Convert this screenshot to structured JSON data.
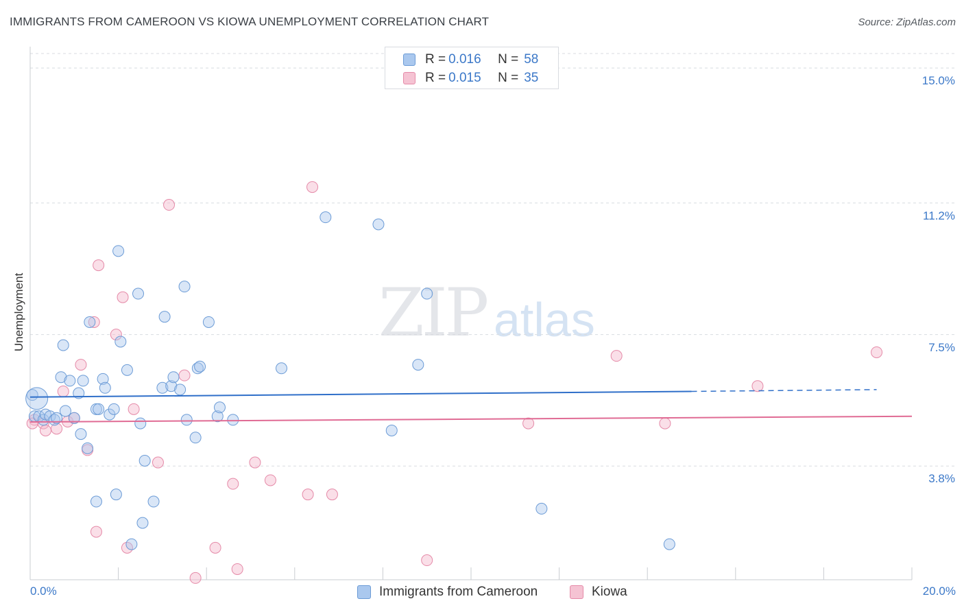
{
  "title": "IMMIGRANTS FROM CAMEROON VS KIOWA UNEMPLOYMENT CORRELATION CHART",
  "source": "Source: ZipAtlas.com",
  "watermark": {
    "zip": "ZIP",
    "atlas": "atlas"
  },
  "legend": {
    "rows": [
      {
        "r_label": "R =",
        "r_value": "0.016",
        "n_label": "N =",
        "n_value": "58"
      },
      {
        "r_label": "R =",
        "r_value": "0.015",
        "n_label": "N =",
        "n_value": "35"
      }
    ]
  },
  "bottom_legend": [
    "Immigrants from Cameroon",
    "Kiowa"
  ],
  "colors": {
    "series1_fill": "#aac8ee",
    "series1_stroke": "#6b9bd6",
    "series1_line": "#2f6fc9",
    "series2_fill": "#f5b8cc",
    "series2_stroke": "#e58aa8",
    "series2_line": "#e06b94",
    "grid": "#d8dbe0",
    "tick_text": "#3b78c8"
  },
  "chart_data": {
    "type": "scatter",
    "title": "IMMIGRANTS FROM CAMEROON VS KIOWA UNEMPLOYMENT CORRELATION CHART",
    "xlabel": "",
    "ylabel": "Unemployment",
    "xlim": [
      0,
      20
    ],
    "ylim": [
      0.6,
      15.6
    ],
    "x_tick_labels": [
      "0.0%",
      "20.0%"
    ],
    "y_ticks": [
      3.8,
      7.5,
      11.2,
      15.0
    ],
    "y_tick_labels": [
      "3.8%",
      "7.5%",
      "11.2%",
      "15.0%"
    ],
    "grid": true,
    "legend_position": "top-center",
    "series": [
      {
        "name": "Immigrants from Cameroon",
        "R": 0.016,
        "N": 58,
        "trend": {
          "x": [
            0,
            15.0
          ],
          "y": [
            5.74,
            5.9
          ],
          "dashed_to_x": 19.2,
          "dashed_y": 5.95
        },
        "points": [
          [
            0.05,
            5.8
          ],
          [
            0.1,
            5.2
          ],
          [
            0.2,
            5.2
          ],
          [
            0.3,
            5.1
          ],
          [
            0.35,
            5.25
          ],
          [
            0.45,
            5.2
          ],
          [
            0.55,
            5.1
          ],
          [
            0.6,
            5.15
          ],
          [
            0.7,
            6.3
          ],
          [
            0.75,
            7.2
          ],
          [
            0.8,
            5.35
          ],
          [
            0.9,
            6.2
          ],
          [
            1.0,
            5.15
          ],
          [
            1.1,
            5.85
          ],
          [
            1.15,
            4.7
          ],
          [
            1.2,
            6.2
          ],
          [
            1.3,
            4.3
          ],
          [
            1.35,
            7.85
          ],
          [
            1.5,
            5.4
          ],
          [
            1.5,
            2.8
          ],
          [
            1.55,
            5.4
          ],
          [
            1.65,
            6.25
          ],
          [
            1.7,
            6.0
          ],
          [
            1.8,
            5.25
          ],
          [
            1.9,
            5.4
          ],
          [
            1.95,
            3.0
          ],
          [
            2.0,
            9.85
          ],
          [
            2.05,
            7.3
          ],
          [
            2.2,
            6.5
          ],
          [
            2.3,
            1.6
          ],
          [
            2.45,
            8.65
          ],
          [
            2.5,
            5.0
          ],
          [
            2.55,
            2.2
          ],
          [
            2.6,
            3.95
          ],
          [
            2.8,
            2.8
          ],
          [
            3.0,
            6.0
          ],
          [
            3.05,
            8.0
          ],
          [
            3.2,
            6.05
          ],
          [
            3.25,
            6.3
          ],
          [
            3.4,
            5.95
          ],
          [
            3.5,
            8.85
          ],
          [
            3.55,
            5.1
          ],
          [
            3.75,
            4.6
          ],
          [
            3.8,
            6.55
          ],
          [
            3.85,
            6.6
          ],
          [
            4.05,
            7.85
          ],
          [
            4.25,
            5.2
          ],
          [
            4.3,
            5.45
          ],
          [
            4.6,
            5.1
          ],
          [
            5.7,
            6.55
          ],
          [
            6.7,
            10.8
          ],
          [
            7.9,
            10.6
          ],
          [
            8.2,
            4.8
          ],
          [
            8.8,
            6.65
          ],
          [
            9.0,
            8.65
          ],
          [
            11.6,
            2.6
          ],
          [
            14.5,
            1.6
          ],
          [
            0.15,
            5.7
          ]
        ]
      },
      {
        "name": "Kiowa",
        "R": 0.015,
        "N": 35,
        "trend": {
          "x": [
            0,
            20.0
          ],
          "y": [
            5.04,
            5.2
          ]
        },
        "points": [
          [
            0.1,
            5.1
          ],
          [
            0.3,
            5.0
          ],
          [
            0.35,
            4.8
          ],
          [
            0.6,
            4.85
          ],
          [
            0.75,
            5.9
          ],
          [
            0.85,
            5.05
          ],
          [
            1.0,
            5.15
          ],
          [
            1.15,
            6.65
          ],
          [
            1.3,
            4.25
          ],
          [
            1.45,
            7.85
          ],
          [
            1.5,
            1.95
          ],
          [
            1.55,
            9.45
          ],
          [
            1.95,
            7.5
          ],
          [
            2.1,
            8.55
          ],
          [
            2.2,
            1.5
          ],
          [
            2.35,
            5.4
          ],
          [
            2.9,
            3.9
          ],
          [
            3.15,
            11.15
          ],
          [
            3.5,
            6.35
          ],
          [
            3.75,
            0.65
          ],
          [
            4.2,
            1.5
          ],
          [
            4.6,
            3.3
          ],
          [
            4.7,
            0.9
          ],
          [
            5.1,
            3.9
          ],
          [
            5.45,
            3.4
          ],
          [
            6.3,
            3.0
          ],
          [
            6.4,
            11.65
          ],
          [
            6.85,
            3.0
          ],
          [
            9.0,
            1.15
          ],
          [
            11.3,
            5.0
          ],
          [
            13.3,
            6.9
          ],
          [
            14.4,
            5.0
          ],
          [
            16.5,
            6.05
          ],
          [
            19.2,
            7.0
          ],
          [
            0.05,
            5.0
          ]
        ]
      }
    ]
  }
}
